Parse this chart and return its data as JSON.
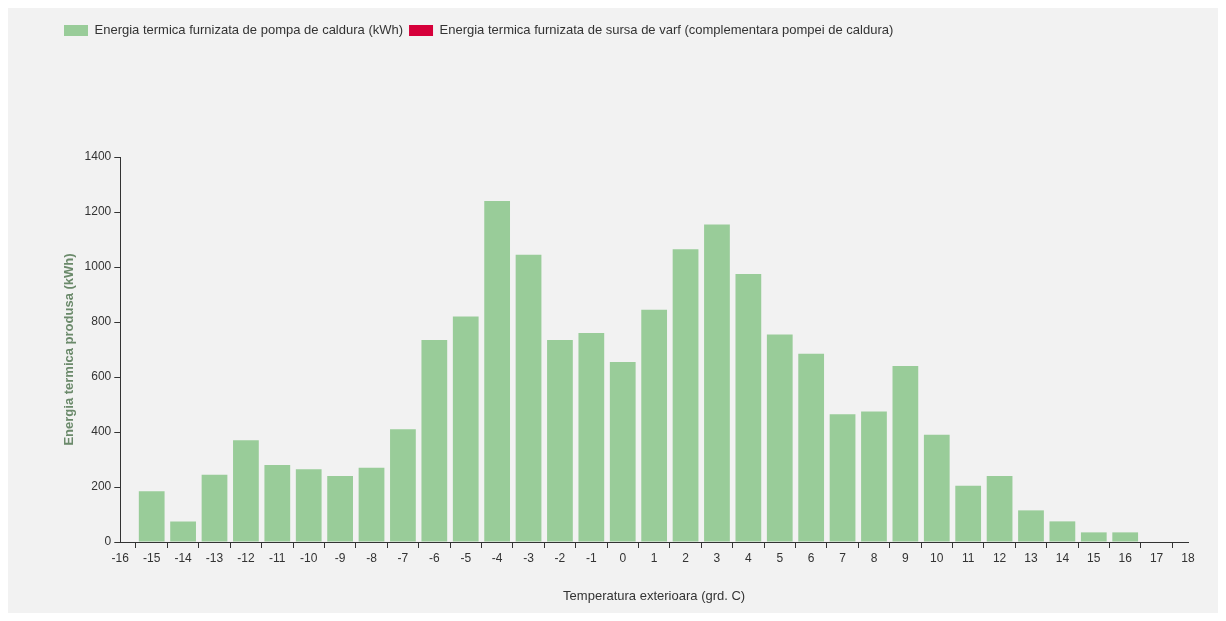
{
  "chart_data": {
    "type": "bar",
    "xlabel": "Temperatura exterioara (grd. C)",
    "ylabel": "Energia termica produsa (kWh)",
    "x": [
      -15,
      -14,
      -13,
      -12,
      -11,
      -10,
      -9,
      -8,
      -7,
      -6,
      -5,
      -4,
      -3,
      -2,
      -1,
      0,
      1,
      2,
      3,
      4,
      5,
      6,
      7,
      8,
      9,
      10,
      11,
      12,
      13,
      14,
      15,
      16
    ],
    "series": [
      {
        "name": "Energia termica furnizata de pompa de caldura (kWh)",
        "color": "#99cc99",
        "values": [
          185,
          75,
          245,
          370,
          280,
          265,
          240,
          270,
          410,
          735,
          820,
          1240,
          1045,
          735,
          760,
          655,
          845,
          1065,
          1155,
          975,
          755,
          685,
          465,
          475,
          640,
          390,
          205,
          240,
          115,
          75,
          35,
          35
        ]
      },
      {
        "name": "Energia termica furnizata de sursa de varf (complementara pompei de caldura)",
        "color": "#d6003a",
        "values": [
          0,
          0,
          0,
          0,
          0,
          0,
          0,
          0,
          0,
          0,
          0,
          0,
          0,
          0,
          0,
          0,
          0,
          0,
          0,
          0,
          0,
          0,
          0,
          0,
          0,
          0,
          0,
          0,
          0,
          0,
          0,
          0
        ]
      }
    ],
    "xlim": [
      -16,
      18
    ],
    "xticks": [
      -16,
      -15,
      -14,
      -13,
      -12,
      -11,
      -10,
      -9,
      -8,
      -7,
      -6,
      -5,
      -4,
      -3,
      -2,
      -1,
      0,
      1,
      2,
      3,
      4,
      5,
      6,
      7,
      8,
      9,
      10,
      11,
      12,
      13,
      14,
      15,
      16,
      17,
      18
    ],
    "ylim": [
      0,
      1400
    ],
    "yticks": [
      0,
      200,
      400,
      600,
      800,
      1000,
      1200,
      1400
    ],
    "grid": false,
    "legend": "top left"
  }
}
